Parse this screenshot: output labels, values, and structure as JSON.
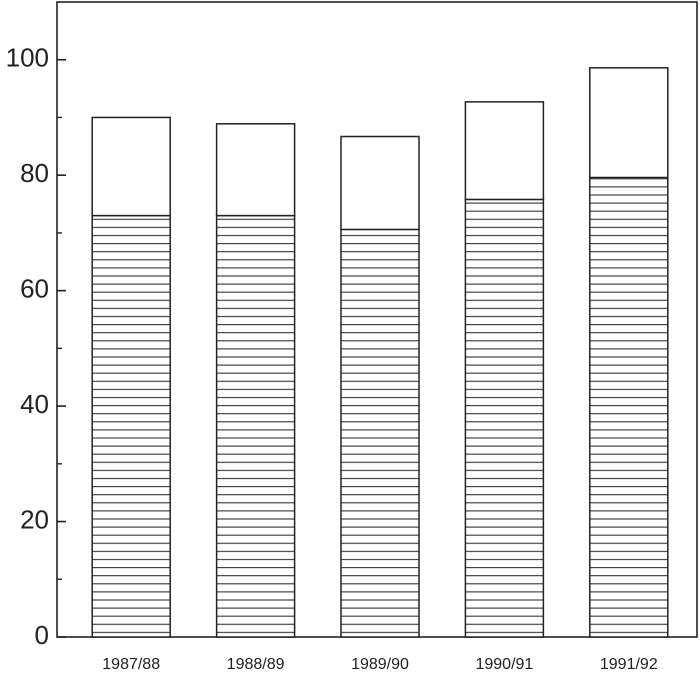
{
  "chart_data": {
    "type": "stacked-bar",
    "categories": [
      "1987/88",
      "1988/89",
      "1989/90",
      "1990/91",
      "1991/92"
    ],
    "series": [
      {
        "color": "#ffffff",
        "hatch": true,
        "values": [
          73.0,
          73.0,
          70.6,
          75.8,
          79.6
        ]
      },
      {
        "color": "#ffffff",
        "hatch": false,
        "values": [
          17.0,
          15.9,
          16.1,
          16.9,
          19.0
        ]
      }
    ],
    "ylim": [
      0,
      110
    ],
    "yticks": [
      0,
      20,
      40,
      60,
      80,
      100
    ],
    "yminorticks": [
      10,
      30,
      50,
      70,
      90
    ],
    "grid": false
  }
}
